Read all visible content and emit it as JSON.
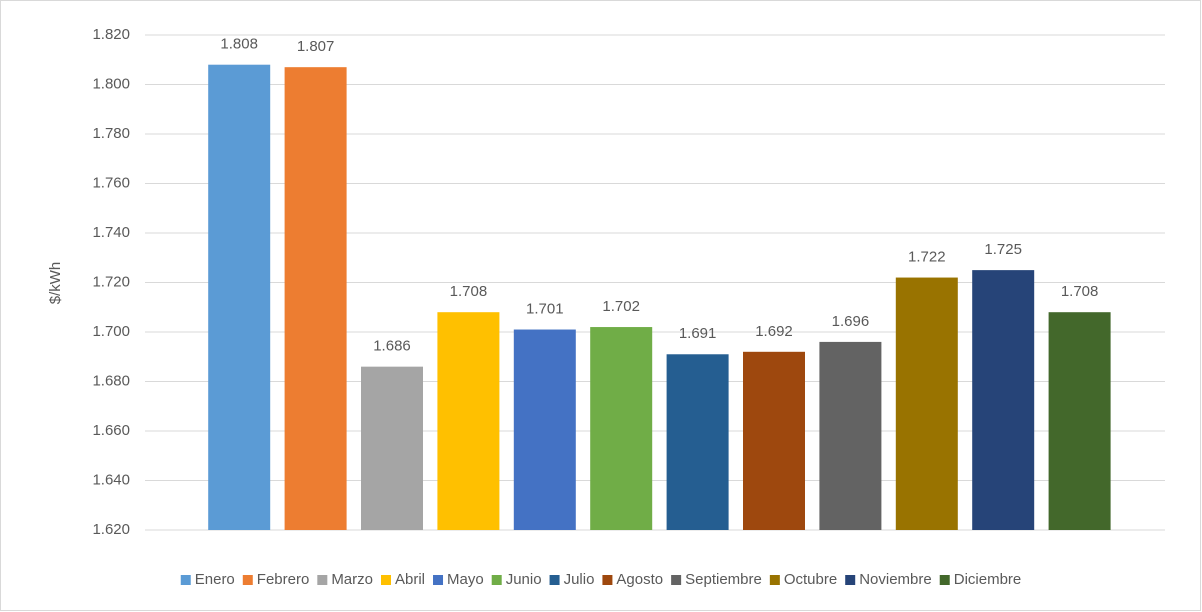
{
  "chart_data": {
    "type": "bar",
    "y_label": "$/kWh",
    "categories": [
      "Enero",
      "Febrero",
      "Marzo",
      "Abril",
      "Mayo",
      "Junio",
      "Julio",
      "Agosto",
      "Septiembre",
      "Octubre",
      "Noviembre",
      "Diciembre"
    ],
    "values": [
      1.808,
      1.807,
      1.686,
      1.708,
      1.701,
      1.702,
      1.691,
      1.692,
      1.696,
      1.722,
      1.725,
      1.708
    ],
    "colors": [
      "#5b9bd5",
      "#ed7d31",
      "#a5a5a5",
      "#ffc000",
      "#4472c4",
      "#70ad47",
      "#255e91",
      "#9e480e",
      "#636363",
      "#997300",
      "#264478",
      "#43682b"
    ],
    "ylim": [
      1.62,
      1.82
    ],
    "yticks": [
      {
        "value": 1.62,
        "label": "1.620"
      },
      {
        "value": 1.64,
        "label": "1.640"
      },
      {
        "value": 1.66,
        "label": "1.660"
      },
      {
        "value": 1.68,
        "label": "1.680"
      },
      {
        "value": 1.7,
        "label": "1.700"
      },
      {
        "value": 1.72,
        "label": "1.720"
      },
      {
        "value": 1.74,
        "label": "1.740"
      },
      {
        "value": 1.76,
        "label": "1.760"
      },
      {
        "value": 1.78,
        "label": "1.780"
      },
      {
        "value": 1.8,
        "label": "1.800"
      },
      {
        "value": 1.82,
        "label": "1.820"
      }
    ],
    "grid": true,
    "legend": "bottom"
  }
}
